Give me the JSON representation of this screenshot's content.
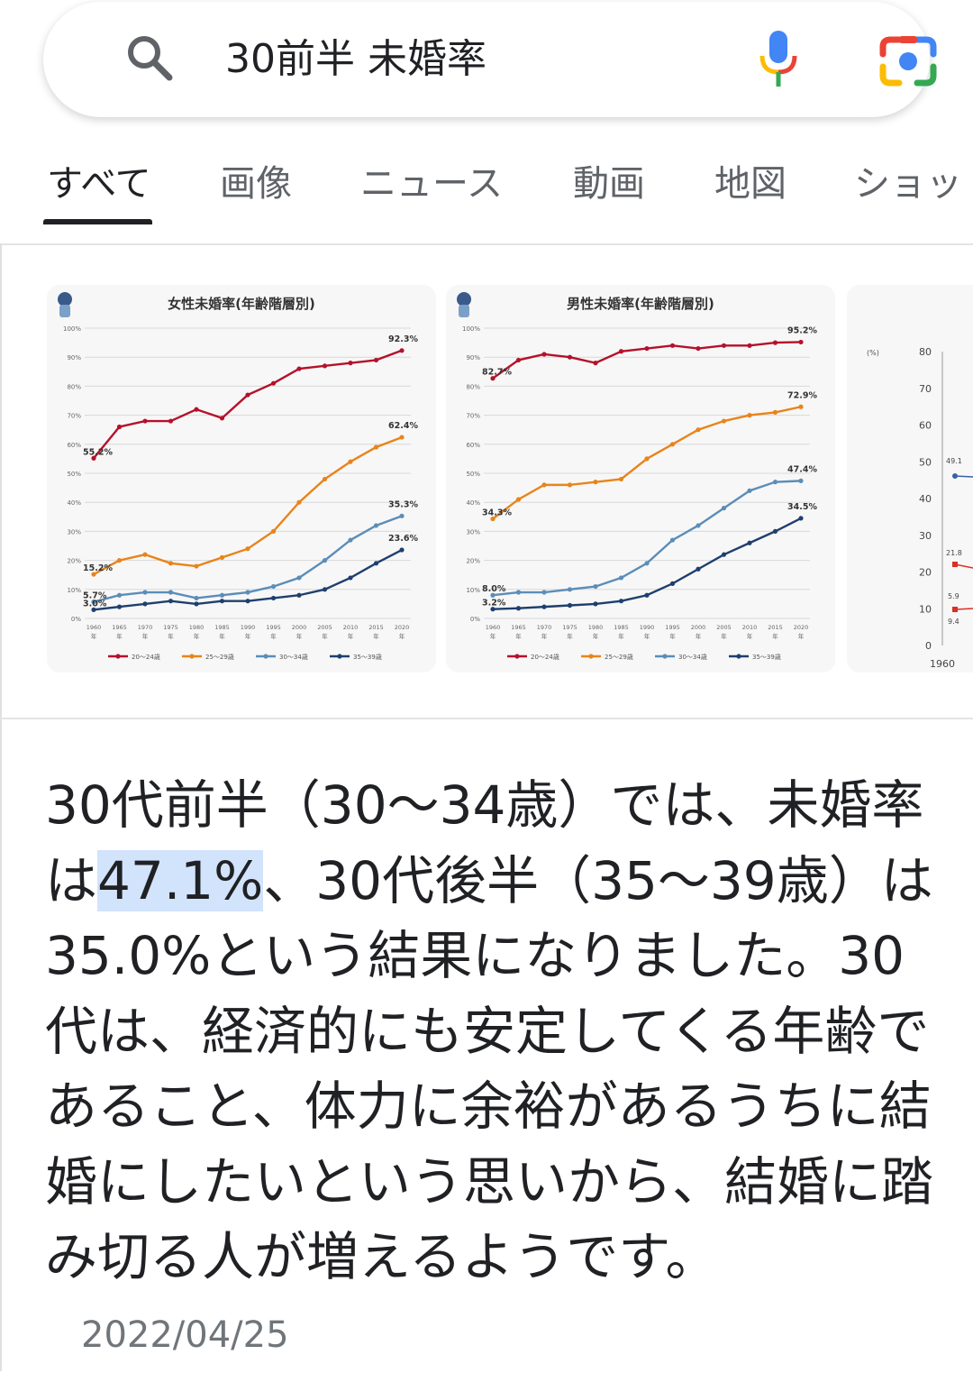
{
  "search": {
    "query": "30前半 未婚率"
  },
  "tabs": [
    {
      "label": "すべて",
      "active": true
    },
    {
      "label": "画像"
    },
    {
      "label": "ニュース"
    },
    {
      "label": "動画"
    },
    {
      "label": "地図"
    },
    {
      "label": "ショッ"
    }
  ],
  "icons": {
    "search": "search-icon",
    "mic": "microphone-icon",
    "lens": "google-lens-icon"
  },
  "colors": {
    "series1": "#b5112a",
    "series2": "#e8841a",
    "series3": "#5b8db8",
    "series4": "#1f3f6e",
    "highlight": "#d2e3fc"
  },
  "chart_data": [
    {
      "type": "line",
      "title": "女性未婚率(年齢階層別)",
      "x": [
        1960,
        1965,
        1970,
        1975,
        1980,
        1985,
        1990,
        1995,
        2000,
        2005,
        2010,
        2015,
        2020
      ],
      "ylim": [
        0,
        100
      ],
      "yticks": [
        "100%",
        "90%",
        "80%",
        "70%",
        "60%",
        "50%",
        "40%",
        "30%",
        "20%",
        "10%",
        "0%"
      ],
      "series": [
        {
          "name": "20〜24歳",
          "color": "#b5112a",
          "values": [
            55.2,
            66,
            68,
            68,
            72,
            69,
            77,
            81,
            86,
            87,
            88,
            89,
            92.3
          ],
          "start_label": "55.2%",
          "end_label": "92.3%"
        },
        {
          "name": "25〜29歳",
          "color": "#e8841a",
          "values": [
            15.2,
            20,
            22,
            19,
            18,
            21,
            24,
            30,
            40,
            48,
            54,
            59,
            62.4
          ],
          "start_label": "15.2%",
          "end_label": "62.4%"
        },
        {
          "name": "30〜34歳",
          "color": "#5b8db8",
          "values": [
            5.7,
            8,
            9,
            9,
            7,
            8,
            9,
            11,
            14,
            20,
            27,
            32,
            35.3
          ],
          "start_label": "5.7%",
          "end_label": "35.3%"
        },
        {
          "name": "35〜39歳",
          "color": "#1f3f6e",
          "values": [
            3.0,
            4,
            5,
            6,
            5,
            6,
            6,
            7,
            8,
            10,
            14,
            19,
            23.6
          ],
          "start_label": "3.0%",
          "end_label": "23.6%"
        }
      ]
    },
    {
      "type": "line",
      "title": "男性未婚率(年齢階層別)",
      "x": [
        1960,
        1965,
        1970,
        1975,
        1980,
        1985,
        1990,
        1995,
        2000,
        2005,
        2010,
        2015,
        2020
      ],
      "ylim": [
        0,
        100
      ],
      "yticks": [
        "100%",
        "90%",
        "80%",
        "70%",
        "60%",
        "50%",
        "40%",
        "30%",
        "20%",
        "10%",
        "0%"
      ],
      "series": [
        {
          "name": "20〜24歳",
          "color": "#b5112a",
          "values": [
            82.7,
            89,
            91,
            90,
            88,
            92,
            93,
            94,
            93,
            94,
            94,
            95,
            95.2
          ],
          "start_label": "82.7%",
          "end_label": "95.2%"
        },
        {
          "name": "25〜29歳",
          "color": "#e8841a",
          "values": [
            34.3,
            41,
            46,
            46,
            47,
            48,
            55,
            60,
            65,
            68,
            70,
            71,
            72.9
          ],
          "start_label": "34.3%",
          "end_label": "72.9%"
        },
        {
          "name": "30〜34歳",
          "color": "#5b8db8",
          "values": [
            8.0,
            9,
            9,
            10,
            11,
            14,
            19,
            27,
            32,
            38,
            44,
            47,
            47.4
          ],
          "start_label": "8.0%",
          "end_label": "47.4%"
        },
        {
          "name": "35〜39歳",
          "color": "#1f3f6e",
          "values": [
            3.2,
            3.5,
            4,
            4.5,
            5,
            6,
            8,
            12,
            17,
            22,
            26,
            30,
            34.5
          ],
          "start_label": "3.2%",
          "end_label": "34.5%"
        }
      ]
    },
    {
      "type": "line",
      "title": "",
      "yticks": [
        "80",
        "70",
        "60",
        "50",
        "40",
        "30",
        "20",
        "10",
        "0"
      ],
      "ylim": [
        0,
        80
      ],
      "y_unit": "(%)",
      "x_first": "1960",
      "labels": [
        "49.1",
        "21.8",
        "5.9",
        "9.4"
      ]
    }
  ],
  "answer": {
    "part1": "30代前半（30〜34歳）では、未婚率は",
    "highlight": "47.1%",
    "part2": "、30代後半（35〜39歳）は35.0%という結果になりました。30代は、経済的にも安定してくる年齢であること、体力に余裕があるうちに結婚にしたいという思いから、結婚に踏み切る人が増えるようです。",
    "date": "2022/04/25"
  }
}
